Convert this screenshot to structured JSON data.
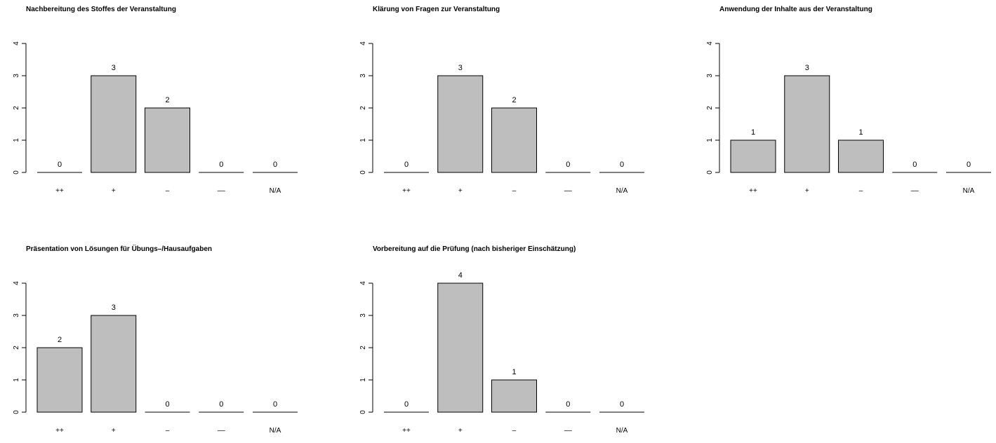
{
  "chart_data": [
    {
      "type": "bar",
      "title": "Nachbereitung des Stoffes der Veranstaltung",
      "categories": [
        "++",
        "+",
        "–",
        "––",
        "N/A"
      ],
      "values": [
        0,
        3,
        2,
        0,
        0
      ],
      "ylim": [
        0,
        4
      ],
      "yticks": [
        "0",
        "1",
        "2",
        "3",
        "4"
      ],
      "xlabel": "",
      "ylabel": "",
      "bar_color": "#bebebe",
      "grid": false
    },
    {
      "type": "bar",
      "title": "Klärung von Fragen zur Veranstaltung",
      "categories": [
        "++",
        "+",
        "–",
        "––",
        "N/A"
      ],
      "values": [
        0,
        3,
        2,
        0,
        0
      ],
      "ylim": [
        0,
        4
      ],
      "yticks": [
        "0",
        "1",
        "2",
        "3",
        "4"
      ],
      "xlabel": "",
      "ylabel": "",
      "bar_color": "#bebebe",
      "grid": false
    },
    {
      "type": "bar",
      "title": "Anwendung der Inhalte aus der Veranstaltung",
      "categories": [
        "++",
        "+",
        "–",
        "––",
        "N/A"
      ],
      "values": [
        1,
        3,
        1,
        0,
        0
      ],
      "ylim": [
        0,
        4
      ],
      "yticks": [
        "0",
        "1",
        "2",
        "3",
        "4"
      ],
      "xlabel": "",
      "ylabel": "",
      "bar_color": "#bebebe",
      "grid": false
    },
    {
      "type": "bar",
      "title": "Präsentation von Lösungen für Übungs–/Hausaufgaben",
      "categories": [
        "++",
        "+",
        "–",
        "––",
        "N/A"
      ],
      "values": [
        2,
        3,
        0,
        0,
        0
      ],
      "ylim": [
        0,
        4
      ],
      "yticks": [
        "0",
        "1",
        "2",
        "3",
        "4"
      ],
      "xlabel": "",
      "ylabel": "",
      "bar_color": "#bebebe",
      "grid": false
    },
    {
      "type": "bar",
      "title": "Vorbereitung auf die Prüfung (nach bisheriger Einschätzung)",
      "categories": [
        "++",
        "+",
        "–",
        "––",
        "N/A"
      ],
      "values": [
        0,
        4,
        1,
        0,
        0
      ],
      "ylim": [
        0,
        4
      ],
      "yticks": [
        "0",
        "1",
        "2",
        "3",
        "4"
      ],
      "xlabel": "",
      "ylabel": "",
      "bar_color": "#bebebe",
      "grid": false
    }
  ]
}
